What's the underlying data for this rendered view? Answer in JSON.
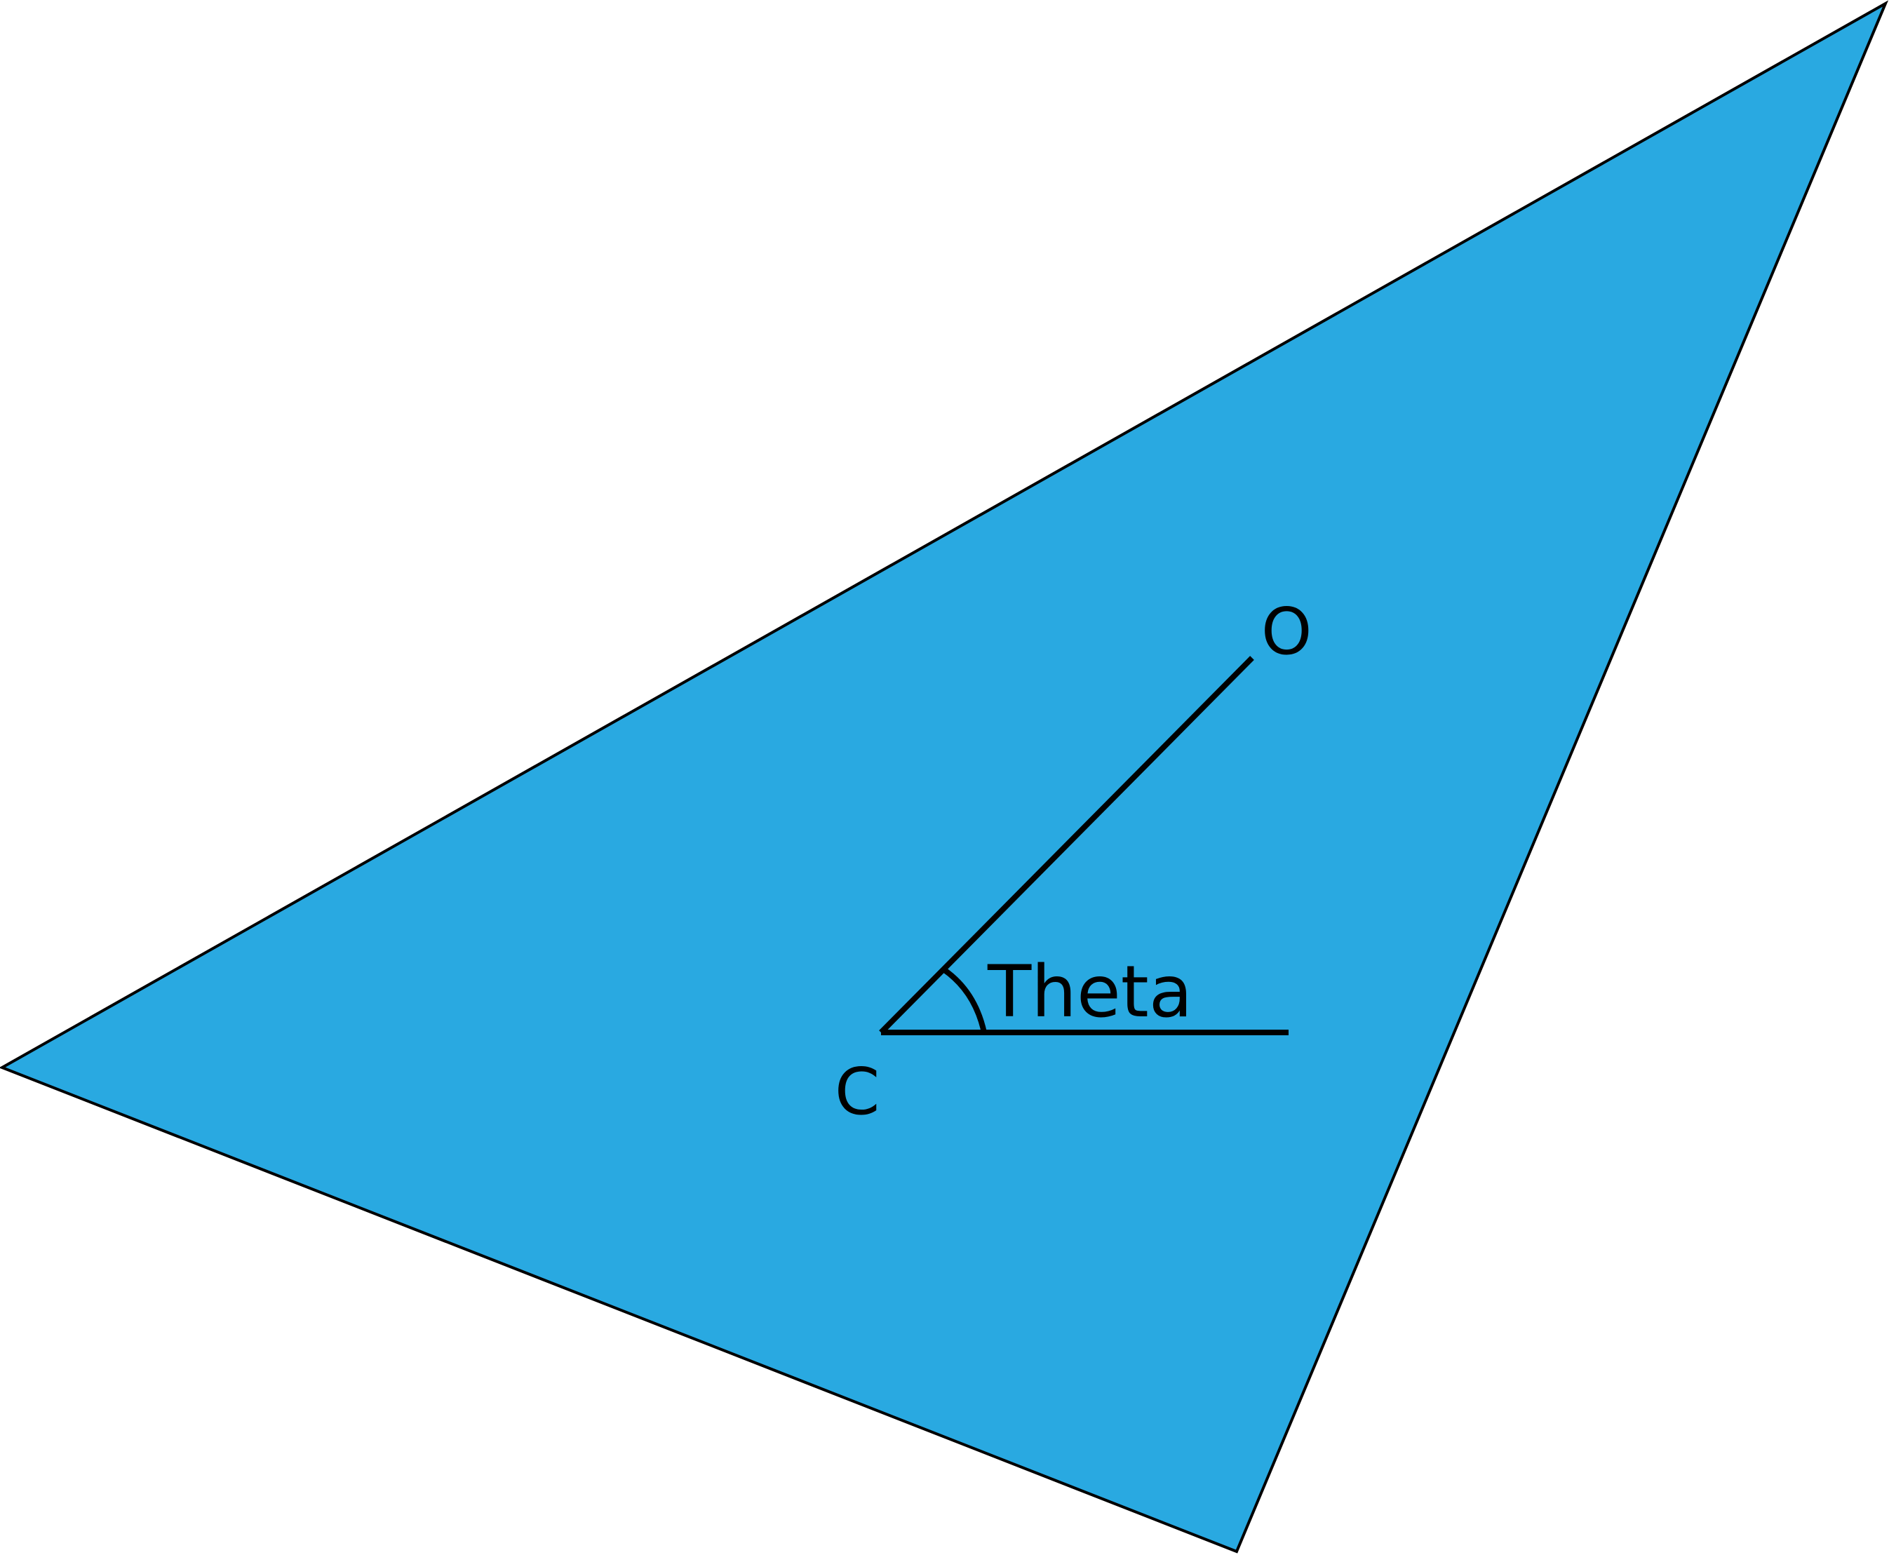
{
  "labels": {
    "point_o": "O",
    "point_c": "C",
    "angle": "Theta"
  },
  "colors": {
    "triangle_fill": "#29A9E1",
    "stroke": "#000000",
    "background": "#FFFFFF"
  }
}
